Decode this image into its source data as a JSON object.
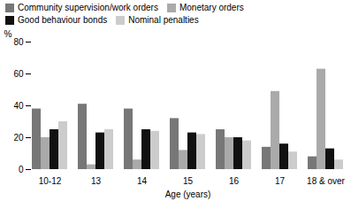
{
  "chart_data": {
    "type": "bar",
    "categories": [
      "10-12",
      "13",
      "14",
      "15",
      "16",
      "17",
      "18 & over"
    ],
    "series": [
      {
        "name": "Community supervision/work orders",
        "color": "#777777",
        "values": [
          38,
          41,
          38,
          32,
          25,
          14,
          8
        ]
      },
      {
        "name": "Monetary orders",
        "color": "#aaaaaa",
        "values": [
          20,
          3,
          6,
          12,
          20,
          49,
          63
        ]
      },
      {
        "name": "Good behaviour bonds",
        "color": "#111111",
        "values": [
          25,
          23,
          25,
          23,
          20,
          16,
          13
        ]
      },
      {
        "name": "Nominal penalties",
        "color": "#cccccc",
        "values": [
          30,
          25,
          24,
          22,
          18,
          11,
          6
        ]
      }
    ],
    "xlabel": "Age (years)",
    "ylabel": "%",
    "ylim": [
      0,
      80
    ],
    "yticks": [
      0,
      20,
      40,
      60,
      80
    ],
    "legend": "upper left",
    "grid": false
  }
}
